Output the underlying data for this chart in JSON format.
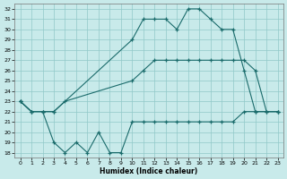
{
  "xlabel": "Humidex (Indice chaleur)",
  "xlim": [
    -0.5,
    23.5
  ],
  "ylim": [
    17.5,
    32.5
  ],
  "yticks": [
    18,
    19,
    20,
    21,
    22,
    23,
    24,
    25,
    26,
    27,
    28,
    29,
    30,
    31,
    32
  ],
  "xticks": [
    0,
    1,
    2,
    3,
    4,
    5,
    6,
    7,
    8,
    9,
    10,
    11,
    12,
    13,
    14,
    15,
    16,
    17,
    18,
    19,
    20,
    21,
    22,
    23
  ],
  "bg_color": "#c8eaea",
  "grid_color": "#90c8c8",
  "line_color": "#1a6b6b",
  "series": [
    {
      "x": [
        0,
        1,
        2,
        3,
        10,
        11,
        12,
        13,
        14,
        15,
        16,
        17,
        18,
        19,
        20,
        21,
        23
      ],
      "y": [
        23,
        22,
        22,
        22,
        29,
        31,
        31,
        31,
        30,
        32,
        32,
        31,
        30,
        30,
        26,
        22,
        22
      ]
    },
    {
      "x": [
        0,
        1,
        2,
        3,
        4,
        10,
        11,
        12,
        13,
        14,
        15,
        16,
        17,
        18,
        19,
        20,
        21,
        22,
        23
      ],
      "y": [
        23,
        22,
        22,
        22,
        23,
        25,
        26,
        27,
        27,
        27,
        27,
        27,
        27,
        27,
        27,
        27,
        26,
        22,
        22
      ]
    },
    {
      "x": [
        0,
        1,
        2,
        3,
        4,
        5,
        6,
        7,
        8,
        9,
        10,
        11,
        12,
        13,
        14,
        15,
        16,
        17,
        18,
        19,
        20,
        21,
        22,
        23
      ],
      "y": [
        23,
        22,
        22,
        19,
        18,
        19,
        18,
        20,
        18,
        18,
        21,
        21,
        21,
        21,
        21,
        21,
        21,
        21,
        21,
        21,
        22,
        22,
        22,
        22
      ]
    }
  ]
}
